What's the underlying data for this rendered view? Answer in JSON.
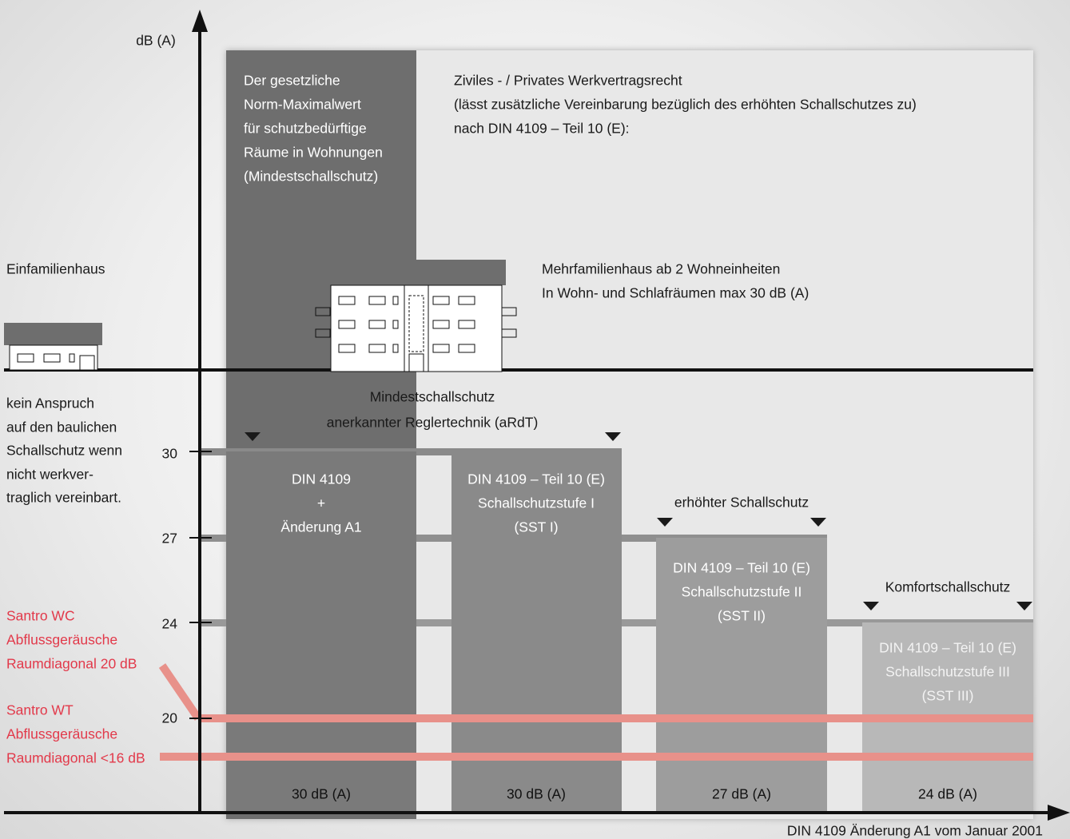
{
  "axis": {
    "y_label": "dB (A)",
    "x_label": "DIN 4109 Änderung A1 vom Januar 2001",
    "ticks": [
      "30",
      "27",
      "24",
      "20"
    ]
  },
  "column_note": [
    "Der gesetzliche",
    "Norm-Maximalwert",
    "für schutzbedürftige",
    "Räume in Wohnungen",
    "(Mindestschallschutz)"
  ],
  "panel_note": [
    "Ziviles - / Privates Werkvertragsrecht",
    "(lässt zusätzliche Vereinbarung bezüglich des erhöhten Schallschutzes zu)",
    "nach DIN 4109 – Teil 10 (E):"
  ],
  "houses": {
    "single": "Einfamilienhaus",
    "multi": [
      "Mehrfamilienhaus ab 2 Wohneinheiten",
      "In Wohn- und Schlafräumen max 30 dB (A)"
    ]
  },
  "left_note": [
    "kein Anspruch",
    "auf den baulichen",
    "Schallschutz wenn",
    "nicht werkver-",
    "traglich vereinbart."
  ],
  "groups": [
    "Mindestschallschutz",
    "anerkannter Reglertechnik (aRdT)",
    "erhöhter Schallschutz",
    "Komfortschallschutz"
  ],
  "bars": [
    {
      "lines": [
        "DIN 4109",
        "+",
        "Änderung A1"
      ],
      "value": "30 dB (A)"
    },
    {
      "lines": [
        "DIN 4109 – Teil 10 (E)",
        "Schallschutzstufe I",
        "(SST I)"
      ],
      "value": "30 dB (A)"
    },
    {
      "lines": [
        "DIN 4109 – Teil 10 (E)",
        "Schallschutzstufe II",
        "(SST II)"
      ],
      "value": "27 dB (A)"
    },
    {
      "lines": [
        "DIN 4109 – Teil 10 (E)",
        "Schallschutzstufe III",
        "(SST III)"
      ],
      "value": "24 dB (A)"
    }
  ],
  "santro": [
    {
      "lines": [
        "Santro WC",
        "Abflussgeräusche",
        "Raumdiagonal 20 dB"
      ]
    },
    {
      "lines": [
        "Santro WT",
        "Abflussgeräusche",
        "Raumdiagonal <16 dB"
      ]
    }
  ]
}
